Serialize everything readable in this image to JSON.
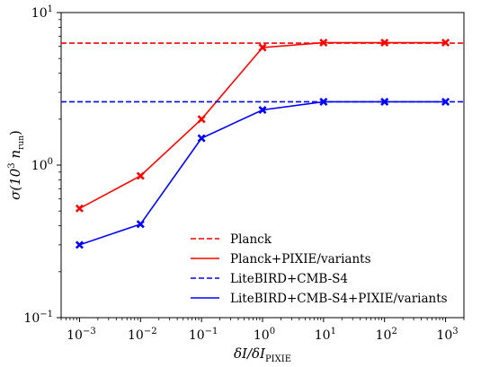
{
  "chart_data": {
    "type": "line",
    "xscale": "log",
    "yscale": "log",
    "xlim": [
      0.0005,
      2000
    ],
    "ylim": [
      0.1,
      10
    ],
    "xticks": [
      {
        "value": 0.001,
        "base": "10",
        "exp": "−3"
      },
      {
        "value": 0.01,
        "base": "10",
        "exp": "−2"
      },
      {
        "value": 0.1,
        "base": "10",
        "exp": "−1"
      },
      {
        "value": 1,
        "base": "10",
        "exp": "0"
      },
      {
        "value": 10,
        "base": "10",
        "exp": "1"
      },
      {
        "value": 100,
        "base": "10",
        "exp": "2"
      },
      {
        "value": 1000,
        "base": "10",
        "exp": "3"
      }
    ],
    "yticks": [
      {
        "value": 0.1,
        "base": "10",
        "exp": "−1"
      },
      {
        "value": 1,
        "base": "10",
        "exp": "0"
      },
      {
        "value": 10,
        "base": "10",
        "exp": "1"
      }
    ],
    "xlabel": {
      "main": "δI/δI",
      "sub": "PIXIE"
    },
    "ylabel": {
      "pre": "σ(10",
      "sup": "3",
      "mid": " n",
      "sub": "run",
      "post": ")"
    },
    "grid": false,
    "legend_position": "bottom-right",
    "x": [
      0.001,
      0.01,
      0.1,
      1,
      10,
      100,
      1000
    ],
    "series": [
      {
        "name": "Planck",
        "color": "#ff0000",
        "style": "dashed",
        "hline": 6.3
      },
      {
        "name": "Planck+PIXIE/variants",
        "color": "#ff0000",
        "style": "solid",
        "marker": "x",
        "values": [
          0.52,
          0.85,
          2.0,
          5.9,
          6.35,
          6.35,
          6.35
        ]
      },
      {
        "name": "LiteBIRD+CMB-S4",
        "color": "#0000ff",
        "style": "dashed",
        "hline": 2.6
      },
      {
        "name": "LiteBIRD+CMB-S4+PIXIE/variants",
        "color": "#0000ff",
        "style": "solid",
        "marker": "x",
        "values": [
          0.3,
          0.41,
          1.5,
          2.3,
          2.6,
          2.6,
          2.6
        ]
      }
    ]
  }
}
